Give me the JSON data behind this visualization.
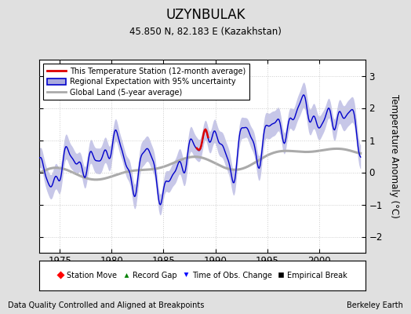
{
  "title": "UZYNBULAK",
  "subtitle": "45.850 N, 82.183 E (Kazakhstan)",
  "ylabel": "Temperature Anomaly (°C)",
  "xlabel_left": "Data Quality Controlled and Aligned at Breakpoints",
  "xlabel_right": "Berkeley Earth",
  "ylim": [
    -2.5,
    3.5
  ],
  "xlim": [
    1973.0,
    2004.5
  ],
  "xticks": [
    1975,
    1980,
    1985,
    1990,
    1995,
    2000
  ],
  "yticks": [
    -2,
    -1,
    0,
    1,
    2,
    3
  ],
  "bg_color": "#e0e0e0",
  "plot_bg_color": "#ffffff",
  "blue_line_color": "#0000cc",
  "blue_fill_color": "#aaaadd",
  "gray_line_color": "#aaaaaa",
  "red_line_color": "#dd0000",
  "red_x_start": 1988.2,
  "red_x_end": 1989.3,
  "tobs_x": 1988.7,
  "figwidth": 5.24,
  "figheight": 4.0,
  "dpi": 100
}
